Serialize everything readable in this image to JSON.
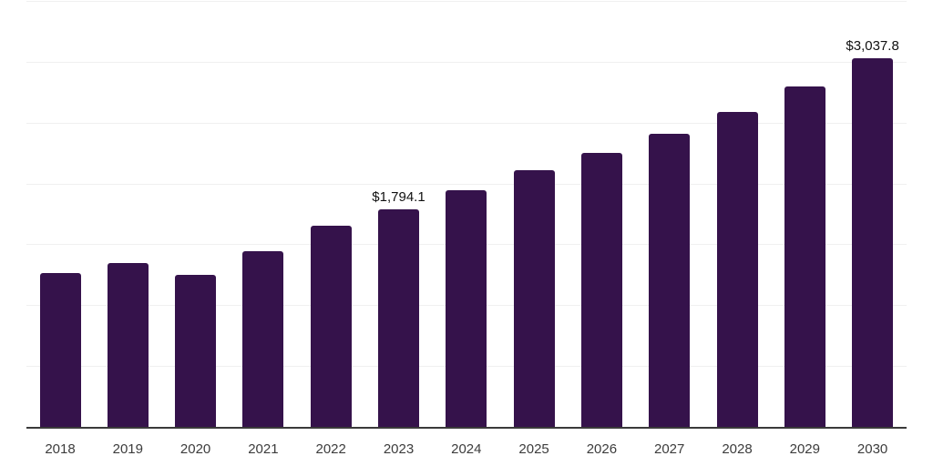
{
  "chart": {
    "background_color": "#ffffff",
    "bar_color": "#35124b",
    "axis_line_color": "#3a3a3a",
    "gridline_color": "#f0f0f0",
    "tick_label_color": "#3c3c3c",
    "value_label_color": "#111111"
  },
  "chart_data": {
    "type": "bar",
    "title": "",
    "xlabel": "",
    "ylabel": "",
    "categories": [
      "2018",
      "2019",
      "2020",
      "2021",
      "2022",
      "2023",
      "2024",
      "2025",
      "2026",
      "2027",
      "2028",
      "2029",
      "2030"
    ],
    "values": [
      1272,
      1351,
      1258,
      1453,
      1661,
      1794.1,
      1949,
      2120,
      2257,
      2417,
      2596,
      2807,
      3037.8
    ],
    "annotations": [
      {
        "index": 5,
        "text": "$1,794.1"
      },
      {
        "index": 12,
        "text": "$3,037.8"
      }
    ],
    "ylim": [
      0,
      3500
    ],
    "y_gridline_step": 500,
    "grid": "horizontal-only",
    "y_axis_labels_visible": false,
    "legend": "none",
    "bar_corner_radius": "rounded-top"
  }
}
